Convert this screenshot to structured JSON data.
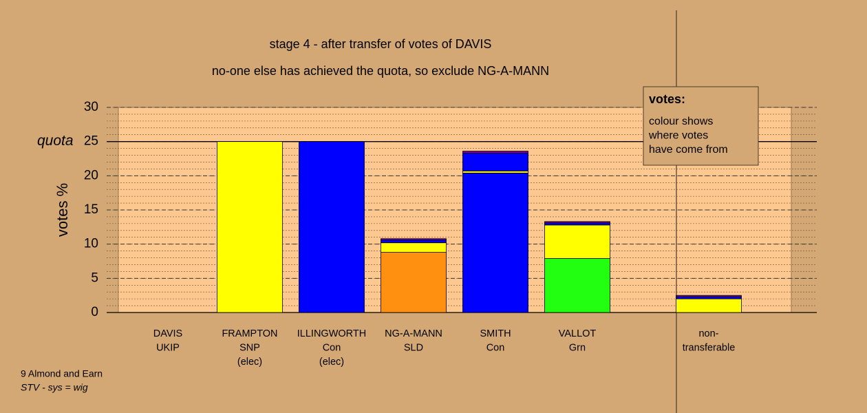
{
  "chart_data": {
    "type": "stacked-bar",
    "title": "stage 4 - after transfer of votes of DAVIS",
    "subtitle": "no-one else has achieved the quota, so exclude NG-A-MANN",
    "y_label": "votes %",
    "categories": [
      [
        "DAVIS",
        "UKIP"
      ],
      [
        "FRAMPTON",
        "SNP",
        "(elec)"
      ],
      [
        "ILLINGWORTH",
        "Con",
        "(elec)"
      ],
      [
        "NG-A-MANN",
        "SLD"
      ],
      [
        "SMITH",
        "Con"
      ],
      [
        "VALLOT",
        "Grn"
      ],
      [
        "non-",
        "transferable"
      ]
    ],
    "series": [
      {
        "color": "#0000ff",
        "values": [
          null,
          null,
          25,
          null,
          20.4,
          null,
          null
        ]
      },
      {
        "color": "#ff9010",
        "values": [
          null,
          null,
          null,
          8.8,
          null,
          null,
          null
        ]
      },
      {
        "color": "#22ff11",
        "values": [
          null,
          null,
          null,
          null,
          null,
          7.9,
          null
        ]
      },
      {
        "color": "#ffff00",
        "values": [
          null,
          25,
          null,
          1.4,
          0.3,
          4.9,
          2.0
        ]
      },
      {
        "color": "#0000ff",
        "values": [
          null,
          null,
          null,
          0.4,
          2.6,
          0.3,
          0.3
        ]
      },
      {
        "color": "#7a0090",
        "values": [
          null,
          null,
          null,
          0.2,
          0.3,
          0.2,
          0.2
        ]
      }
    ],
    "ylim": [
      0,
      30
    ],
    "yticks": [
      0,
      5,
      10,
      15,
      20,
      25,
      30
    ],
    "minor_grid_step": 1,
    "grid": true,
    "quota": {
      "value": 25,
      "label": "quota"
    },
    "legend": {
      "title": "votes:",
      "lines": [
        "colour shows",
        "where votes",
        "have come from"
      ]
    },
    "footer": [
      "9 Almond and Earn",
      "STV - sys = wig"
    ]
  }
}
